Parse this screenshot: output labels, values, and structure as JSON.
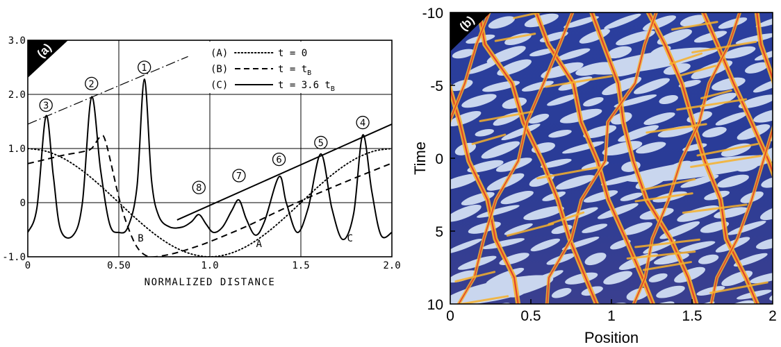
{
  "chart_data": [
    {
      "type": "line",
      "panel_label": "(a)",
      "xlabel": "NORMALIZED DISTANCE",
      "ylabel": "",
      "xlim": [
        0,
        2.0
      ],
      "ylim": [
        -1.0,
        3.0
      ],
      "x_ticks": [
        "0",
        "0.50",
        "1.0",
        "1.5",
        "2.0"
      ],
      "x_tick_values": [
        0,
        0.5,
        1.0,
        1.5,
        2.0
      ],
      "y_ticks": [
        "-1.0",
        "0",
        "1.0",
        "2.0",
        "3.0"
      ],
      "y_tick_values": [
        -1.0,
        0,
        1.0,
        2.0,
        3.0
      ],
      "grid": true,
      "legend_position": "top-center",
      "legend": [
        {
          "key": "(A)",
          "style": "dotted",
          "label": "t = 0"
        },
        {
          "key": "(B)",
          "style": "dashed",
          "label": "t = t",
          "sub": "B"
        },
        {
          "key": "(C)",
          "style": "solid",
          "label": "t = 3.6 t",
          "sub": "B"
        }
      ],
      "curve_labels": [
        {
          "text": "A",
          "x": 1.27,
          "y": -0.82
        },
        {
          "text": "B",
          "x": 0.62,
          "y": -0.72
        },
        {
          "text": "C",
          "x": 1.77,
          "y": -0.72
        }
      ],
      "peak_labels": [
        {
          "text": "1",
          "x": 0.64,
          "y": 2.5
        },
        {
          "text": "2",
          "x": 0.35,
          "y": 2.2
        },
        {
          "text": "3",
          "x": 0.1,
          "y": 1.8
        },
        {
          "text": "4",
          "x": 1.84,
          "y": 1.48
        },
        {
          "text": "5",
          "x": 1.61,
          "y": 1.11
        },
        {
          "text": "6",
          "x": 1.38,
          "y": 0.8
        },
        {
          "text": "7",
          "x": 1.16,
          "y": 0.5
        },
        {
          "text": "8",
          "x": 0.94,
          "y": 0.28
        }
      ],
      "series": [
        {
          "key": "A",
          "style": "dotted",
          "x": [
            0,
            0.1,
            0.2,
            0.3,
            0.4,
            0.5,
            0.6,
            0.7,
            0.8,
            0.9,
            1.0,
            1.1,
            1.2,
            1.3,
            1.4,
            1.5,
            1.6,
            1.7,
            1.8,
            1.9,
            2.0
          ],
          "y": [
            1.0,
            0.95,
            0.81,
            0.59,
            0.31,
            0.0,
            -0.31,
            -0.59,
            -0.81,
            -0.95,
            -1.0,
            -0.95,
            -0.81,
            -0.59,
            -0.31,
            0.0,
            0.31,
            0.59,
            0.81,
            0.95,
            1.0
          ]
        },
        {
          "key": "B",
          "style": "dashed",
          "x": [
            0,
            0.1,
            0.2,
            0.3,
            0.35,
            0.4,
            0.43,
            0.5,
            0.55,
            0.6,
            0.65,
            0.7,
            0.8,
            0.9,
            1.0,
            1.2,
            1.4,
            1.6,
            1.8,
            2.0
          ],
          "y": [
            0.72,
            0.8,
            0.88,
            0.94,
            1.0,
            1.22,
            1.1,
            0.1,
            -0.45,
            -0.82,
            -0.98,
            -1.0,
            -0.94,
            -0.84,
            -0.72,
            -0.44,
            -0.12,
            0.18,
            0.46,
            0.73
          ]
        },
        {
          "key": "C",
          "style": "solid",
          "x": [
            0,
            0.05,
            0.1,
            0.14,
            0.18,
            0.25,
            0.3,
            0.35,
            0.4,
            0.45,
            0.5,
            0.55,
            0.6,
            0.64,
            0.68,
            0.72,
            0.78,
            0.85,
            0.9,
            0.94,
            0.98,
            1.02,
            1.07,
            1.12,
            1.16,
            1.2,
            1.25,
            1.3,
            1.38,
            1.42,
            1.48,
            1.54,
            1.61,
            1.67,
            1.73,
            1.79,
            1.84,
            1.89,
            1.94,
            2.0
          ],
          "y": [
            -0.55,
            -0.1,
            1.6,
            0.5,
            -0.5,
            -0.6,
            0.0,
            1.95,
            0.6,
            -0.4,
            -0.55,
            -0.45,
            0.3,
            2.28,
            0.4,
            -0.25,
            -0.45,
            -0.45,
            -0.35,
            -0.22,
            -0.4,
            -0.55,
            -0.45,
            -0.15,
            0.05,
            -0.3,
            -0.6,
            -0.35,
            0.48,
            0.0,
            -0.55,
            -0.1,
            0.9,
            -0.1,
            -0.68,
            -0.2,
            1.25,
            0.2,
            -0.6,
            -0.55
          ]
        }
      ],
      "annotation_lines": [
        {
          "style": "dash-dot",
          "x": [
            0.0,
            0.88
          ],
          "y": [
            1.45,
            2.7
          ]
        },
        {
          "style": "solid",
          "x": [
            0.82,
            2.0
          ],
          "y": [
            -0.32,
            1.45
          ]
        }
      ]
    },
    {
      "type": "heatmap",
      "panel_label": "(b)",
      "xlabel": "Position",
      "ylabel": "Time",
      "xlim": [
        0,
        2
      ],
      "ylim": [
        -10,
        10
      ],
      "y_inverted": true,
      "x_ticks": [
        "0",
        "0.5",
        "1",
        "1.5",
        "2"
      ],
      "x_tick_values": [
        0,
        0.5,
        1,
        1.5,
        2
      ],
      "y_ticks": [
        "-10",
        "-5",
        "0",
        "5",
        "10"
      ],
      "y_tick_values": [
        -10,
        -5,
        0,
        5,
        10
      ],
      "grid": false,
      "colors": {
        "background": "#2b3f9e",
        "light": "#c9d6ee",
        "ridge": "#f6b12c",
        "ridge_core": "#e2432a"
      }
    }
  ]
}
